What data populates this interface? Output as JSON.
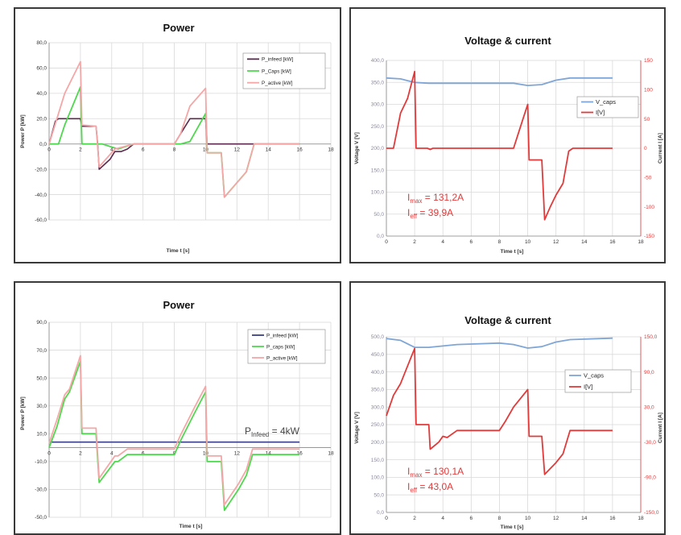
{
  "chart_data": [
    {
      "type": "line",
      "title": "Power",
      "xlabel": "Time t [s]",
      "ylabel": "Power P [kW]",
      "xlim": [
        0,
        18
      ],
      "ylim": [
        -60,
        80
      ],
      "x_ticks": [
        0,
        2,
        4,
        6,
        8,
        10,
        12,
        14,
        16,
        18
      ],
      "y_ticks": [
        -60,
        -40,
        -20,
        0,
        20,
        40,
        60,
        80
      ],
      "y_tick_labels": [
        "-60,0",
        "-40,0",
        "-20,0",
        "0,0",
        "20,0",
        "40,0",
        "60,0",
        "80,0"
      ],
      "grid": true,
      "legend_position": "top-right",
      "legend": [
        "P_infeed [kW]",
        "P_Caps [kW]",
        "P_active [kW]"
      ],
      "series": [
        {
          "name": "P_infeed [kW]",
          "color": "#5b2a4e",
          "points": [
            [
              0,
              0
            ],
            [
              0.4,
              18
            ],
            [
              0.6,
              20
            ],
            [
              2,
              20
            ],
            [
              2.1,
              14
            ],
            [
              3,
              14
            ],
            [
              3.1,
              0
            ],
            [
              3.2,
              -20
            ],
            [
              3.9,
              -12
            ],
            [
              4.2,
              -6
            ],
            [
              4.6,
              -6
            ],
            [
              5,
              -4
            ],
            [
              5.4,
              0
            ],
            [
              8,
              0
            ],
            [
              8.4,
              8
            ],
            [
              9,
              20
            ],
            [
              10,
              20
            ],
            [
              10.1,
              0
            ],
            [
              16,
              0
            ]
          ]
        },
        {
          "name": "P_Caps [kW]",
          "color": "#4fd84f",
          "points": [
            [
              0,
              0
            ],
            [
              0.4,
              0
            ],
            [
              0.6,
              0
            ],
            [
              1,
              15
            ],
            [
              2,
              45
            ],
            [
              2.1,
              0
            ],
            [
              3.4,
              0
            ],
            [
              4.4,
              -4
            ],
            [
              5.4,
              0
            ],
            [
              8,
              0
            ],
            [
              8.4,
              0
            ],
            [
              9,
              2
            ],
            [
              10,
              24
            ],
            [
              10.1,
              -7
            ],
            [
              11,
              -7
            ],
            [
              11.2,
              -42
            ],
            [
              12.6,
              -22
            ],
            [
              13.1,
              0
            ],
            [
              16,
              0
            ]
          ]
        },
        {
          "name": "P_active [kW]",
          "color": "#f5a6a6",
          "points": [
            [
              0,
              0
            ],
            [
              0.5,
              20
            ],
            [
              1,
              40
            ],
            [
              2,
              65
            ],
            [
              2.1,
              15
            ],
            [
              3,
              14
            ],
            [
              3.2,
              -18
            ],
            [
              4.2,
              -4
            ],
            [
              5.4,
              0
            ],
            [
              8,
              0
            ],
            [
              8.4,
              8
            ],
            [
              9,
              30
            ],
            [
              10,
              44
            ],
            [
              10.1,
              -7
            ],
            [
              11,
              -7
            ],
            [
              11.2,
              -42
            ],
            [
              12.6,
              -22
            ],
            [
              13.1,
              0
            ],
            [
              16,
              0
            ]
          ]
        }
      ]
    },
    {
      "type": "line",
      "title": "Voltage & current",
      "xlabel": "Time t [s]",
      "ylabel": "Voltage V [V]",
      "y2label": "Current I [A]",
      "xlim": [
        0,
        18
      ],
      "ylim": [
        0,
        400
      ],
      "y2lim": [
        -150,
        150
      ],
      "x_ticks": [
        0,
        2,
        4,
        6,
        8,
        10,
        12,
        14,
        16,
        18
      ],
      "y_ticks": [
        0,
        50,
        100,
        150,
        200,
        250,
        300,
        350,
        400
      ],
      "y_tick_labels": [
        "0,0",
        "50,0",
        "100,0",
        "150,0",
        "200,0",
        "250,0",
        "300,0",
        "350,0",
        "400,0"
      ],
      "y2_ticks": [
        -150,
        -100,
        -50,
        0,
        50,
        100,
        150
      ],
      "y2_tick_labels": [
        "-150",
        "-100",
        "-50",
        "0",
        "50",
        "100",
        "150"
      ],
      "grid": true,
      "legend_position": "right",
      "legend": [
        "V_caps",
        "I[V]"
      ],
      "annotations": [
        {
          "main": "I",
          "sub": "max",
          "rest": " = 131,2A"
        },
        {
          "main": "I",
          "sub": "eff",
          "rest": " = 39,9A"
        }
      ],
      "series": [
        {
          "name": "V_caps",
          "axis": "left",
          "color": "#7fa6d6",
          "points": [
            [
              0,
              360
            ],
            [
              1,
              358
            ],
            [
              2,
              350
            ],
            [
              3,
              348
            ],
            [
              5,
              348
            ],
            [
              8,
              348
            ],
            [
              9,
              348
            ],
            [
              10,
              343
            ],
            [
              11,
              345
            ],
            [
              12,
              355
            ],
            [
              13,
              360
            ],
            [
              16,
              360
            ]
          ]
        },
        {
          "name": "I[V]",
          "axis": "right",
          "color": "#e23a3a",
          "points": [
            [
              0,
              0
            ],
            [
              0.5,
              0
            ],
            [
              1,
              60
            ],
            [
              1.5,
              85
            ],
            [
              2,
              131
            ],
            [
              2.1,
              0
            ],
            [
              2.9,
              0
            ],
            [
              3.1,
              -2
            ],
            [
              3.3,
              0
            ],
            [
              9,
              0
            ],
            [
              9.6,
              45
            ],
            [
              10,
              75
            ],
            [
              10.1,
              -20
            ],
            [
              11,
              -20
            ],
            [
              11.2,
              -122
            ],
            [
              11.6,
              -100
            ],
            [
              12,
              -80
            ],
            [
              12.5,
              -60
            ],
            [
              12.9,
              -5
            ],
            [
              13.2,
              0
            ],
            [
              16,
              0
            ]
          ]
        }
      ]
    },
    {
      "type": "line",
      "title": "Power",
      "xlabel": "Time t [s]",
      "ylabel": "Power P [kW]",
      "xlim": [
        0,
        18
      ],
      "ylim": [
        -50,
        90
      ],
      "x_ticks": [
        0,
        2,
        4,
        6,
        8,
        10,
        12,
        14,
        16,
        18
      ],
      "y_ticks": [
        -50,
        -30,
        -10,
        10,
        30,
        50,
        70,
        90
      ],
      "y_tick_labels": [
        "-50,0",
        "-30,0",
        "-10,0",
        "10,0",
        "30,0",
        "50,0",
        "70,0",
        "90,0"
      ],
      "grid": true,
      "legend_position": "top-right",
      "legend": [
        "P_infeed [kW]",
        "P_caps [kW]",
        "P_active [kW]"
      ],
      "annotations": [
        {
          "main": "P",
          "sub": "Infeed",
          "rest": " = 4kW"
        }
      ],
      "series": [
        {
          "name": "P_infeed [kW]",
          "color": "#3a3f86",
          "points": [
            [
              0,
              4
            ],
            [
              16,
              4
            ]
          ]
        },
        {
          "name": "P_caps [kW]",
          "color": "#4fd84f",
          "points": [
            [
              0,
              0
            ],
            [
              0.5,
              15
            ],
            [
              1,
              35
            ],
            [
              1.3,
              40
            ],
            [
              2,
              62
            ],
            [
              2.1,
              10
            ],
            [
              3,
              10
            ],
            [
              3.2,
              -25
            ],
            [
              4.2,
              -10
            ],
            [
              4.4,
              -10
            ],
            [
              5,
              -5
            ],
            [
              8,
              -5
            ],
            [
              8.4,
              5
            ],
            [
              9.3,
              25
            ],
            [
              10,
              40
            ],
            [
              10.1,
              -10
            ],
            [
              11,
              -10
            ],
            [
              11.2,
              -45
            ],
            [
              12.1,
              -30
            ],
            [
              12.6,
              -20
            ],
            [
              13,
              -5
            ],
            [
              16,
              -5
            ]
          ]
        },
        {
          "name": "P_active [kW]",
          "color": "#f5a6a6",
          "points": [
            [
              0,
              3
            ],
            [
              0.5,
              20
            ],
            [
              1,
              38
            ],
            [
              1.3,
              42
            ],
            [
              2,
              66
            ],
            [
              2.1,
              14
            ],
            [
              3,
              14
            ],
            [
              3.2,
              -22
            ],
            [
              4.2,
              -6
            ],
            [
              4.4,
              -6
            ],
            [
              5,
              -1
            ],
            [
              8,
              -1
            ],
            [
              8.4,
              9
            ],
            [
              9.3,
              29
            ],
            [
              10,
              44
            ],
            [
              10.1,
              -6
            ],
            [
              11,
              -6
            ],
            [
              11.2,
              -41
            ],
            [
              12.1,
              -26
            ],
            [
              12.6,
              -16
            ],
            [
              13,
              -1
            ],
            [
              16,
              -1
            ]
          ]
        }
      ]
    },
    {
      "type": "line",
      "title": "Voltage & current",
      "xlabel": "Time t [s]",
      "ylabel": "Voltage V [V]",
      "y2label": "Current I [A]",
      "xlim": [
        0,
        18
      ],
      "ylim": [
        0,
        500
      ],
      "y2lim": [
        -150,
        150
      ],
      "x_ticks": [
        0,
        2,
        4,
        6,
        8,
        10,
        12,
        14,
        16,
        18
      ],
      "y_ticks": [
        0,
        50,
        100,
        150,
        200,
        250,
        300,
        350,
        400,
        450,
        500
      ],
      "y_tick_labels": [
        "0,0",
        "50,0",
        "100,0",
        "150,0",
        "200,0",
        "250,0",
        "300,0",
        "350,0",
        "400,0",
        "450,0",
        "500,0"
      ],
      "y2_ticks": [
        -150,
        -90,
        -30,
        30,
        90,
        150
      ],
      "y2_tick_labels": [
        "-150,0",
        "-90,0",
        "-30,0",
        "30,0",
        "90,0",
        "150,0"
      ],
      "grid": true,
      "legend_position": "right",
      "legend": [
        "V_caps",
        "I[V]"
      ],
      "annotations": [
        {
          "main": "I",
          "sub": "max",
          "rest": " = 130,1A"
        },
        {
          "main": "I",
          "sub": "eff",
          "rest": " = 43,0A"
        }
      ],
      "series": [
        {
          "name": "V_caps",
          "axis": "left",
          "color": "#7fa6d6",
          "points": [
            [
              0,
              495
            ],
            [
              1,
              490
            ],
            [
              2,
              470
            ],
            [
              3,
              470
            ],
            [
              5,
              478
            ],
            [
              8,
              482
            ],
            [
              9,
              478
            ],
            [
              10,
              468
            ],
            [
              11,
              472
            ],
            [
              12,
              485
            ],
            [
              13,
              492
            ],
            [
              16,
              496
            ]
          ]
        },
        {
          "name": "I[V]",
          "axis": "right",
          "color": "#e23a3a",
          "points": [
            [
              0,
              15
            ],
            [
              0.5,
              50
            ],
            [
              1,
              70
            ],
            [
              1.5,
              100
            ],
            [
              2,
              130
            ],
            [
              2.1,
              0
            ],
            [
              3,
              0
            ],
            [
              3.1,
              -42
            ],
            [
              3.7,
              -30
            ],
            [
              4,
              -20
            ],
            [
              4.3,
              -22
            ],
            [
              5,
              -10
            ],
            [
              8,
              -10
            ],
            [
              8.4,
              5
            ],
            [
              9,
              30
            ],
            [
              10,
              60
            ],
            [
              10.1,
              -20
            ],
            [
              11,
              -20
            ],
            [
              11.2,
              -85
            ],
            [
              12,
              -65
            ],
            [
              12.5,
              -50
            ],
            [
              13,
              -10
            ],
            [
              16,
              -10
            ]
          ]
        }
      ]
    }
  ]
}
